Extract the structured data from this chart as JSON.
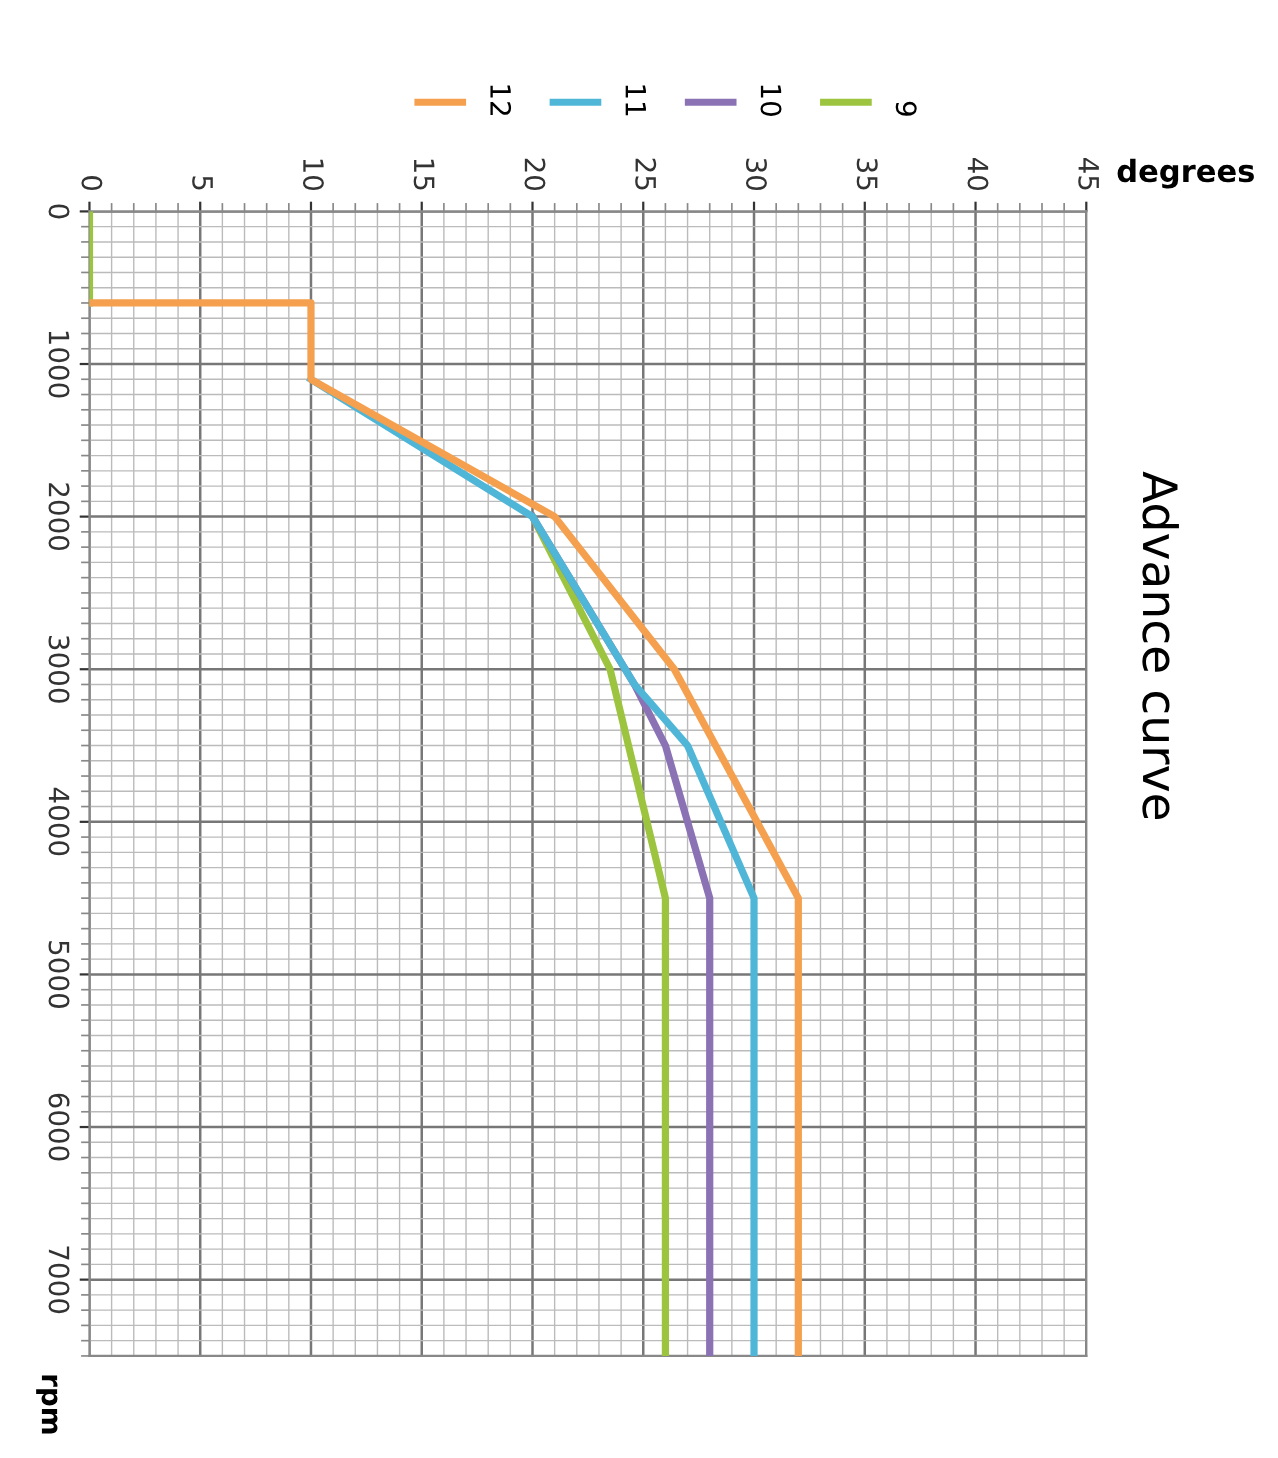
{
  "chart_data": {
    "type": "line",
    "title": "Advance curve",
    "xlabel": "degrees",
    "ylabel": "rpm",
    "xlim": [
      0,
      45
    ],
    "xticks": [
      0,
      5,
      10,
      15,
      20,
      25,
      30,
      35,
      40,
      45
    ],
    "ylim": [
      7500,
      0
    ],
    "yticks": [
      0,
      1000,
      2000,
      3000,
      4000,
      5000,
      6000,
      7000
    ],
    "grid": true,
    "legend": "top",
    "line_style": "solid",
    "marker": "none",
    "series": [
      {
        "name": "12",
        "color": "#f5a04e",
        "x": [
          0,
          10,
          10,
          21,
          26.4,
          32,
          32
        ],
        "values": [
          600,
          600,
          1100,
          2000,
          3000,
          4500,
          7500
        ]
      },
      {
        "name": "11",
        "color": "#4fb6d8",
        "x": [
          10,
          20,
          24.6,
          27,
          30,
          30
        ],
        "values": [
          1100,
          2000,
          3100,
          3500,
          4500,
          7500
        ]
      },
      {
        "name": "10",
        "color": "#8a72b5",
        "x": [
          20,
          24.6,
          26,
          28,
          28
        ],
        "values": [
          2000,
          3100,
          3500,
          4500,
          7500
        ]
      },
      {
        "name": "9",
        "color": "#9cc43f",
        "x": [
          0,
          0,
          null,
          20,
          23.5,
          26,
          26
        ],
        "values": [
          0,
          600,
          null,
          2000,
          3000,
          4500,
          7500
        ]
      }
    ]
  }
}
